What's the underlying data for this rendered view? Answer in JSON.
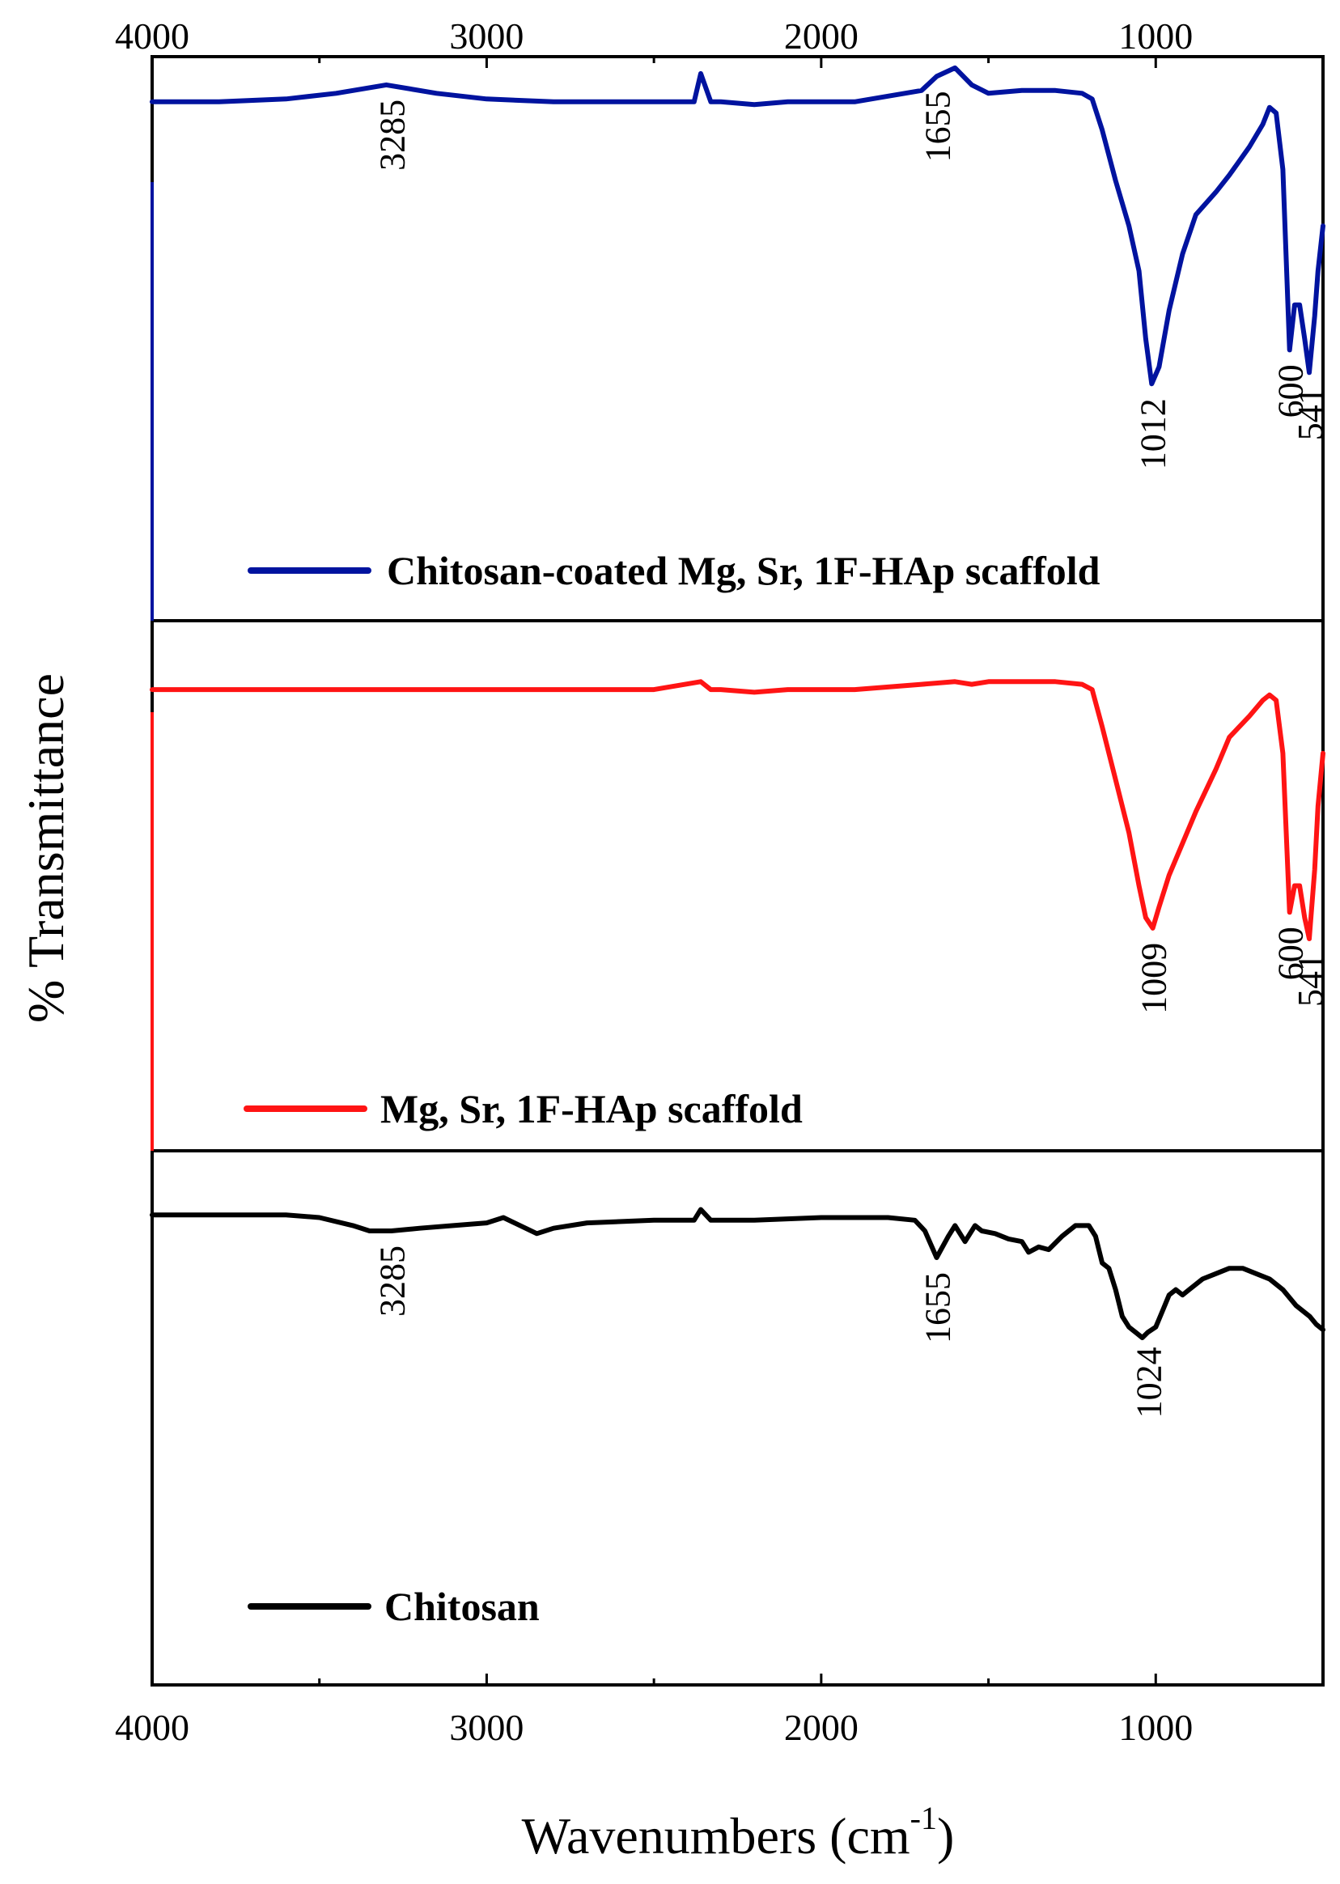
{
  "chart_data": {
    "type": "line",
    "xlabel": "Wavenumbers (cm",
    "xlabel_sup": "-1",
    "xlabel_end": ")",
    "ylabel": "% Transmittance",
    "xlim": [
      4000,
      500
    ],
    "x_ticks": [
      4000,
      3000,
      2000,
      1000
    ],
    "x_tick_labels": [
      "4000",
      "3000",
      "2000",
      "1000"
    ],
    "series": [
      {
        "name": "Chitosan-coated Mg, Sr, 1F-HAp scaffold",
        "color": "#00139f",
        "ylim": [
          0,
          100
        ],
        "x": [
          4000,
          3800,
          3600,
          3450,
          3300,
          3150,
          3000,
          2800,
          2500,
          2380,
          2360,
          2330,
          2300,
          2200,
          2100,
          2000,
          1900,
          1800,
          1700,
          1655,
          1600,
          1550,
          1500,
          1400,
          1300,
          1220,
          1190,
          1160,
          1120,
          1080,
          1050,
          1030,
          1012,
          990,
          960,
          920,
          880,
          820,
          780,
          720,
          680,
          660,
          640,
          620,
          600,
          585,
          570,
          555,
          541,
          525,
          515,
          500
        ],
        "y": [
          92,
          92,
          92.5,
          93.5,
          95,
          93.5,
          92.5,
          92,
          92,
          92,
          97,
          92,
          92,
          91.5,
          92,
          92,
          92,
          93,
          94,
          96.5,
          98,
          95,
          93.5,
          94,
          94,
          93.5,
          92.5,
          87,
          78,
          70,
          62,
          50,
          42,
          45,
          55,
          65,
          72,
          76,
          79,
          84,
          88,
          91,
          90,
          80,
          48,
          56,
          56,
          50,
          44,
          54,
          62,
          70
        ]
      },
      {
        "name": "Mg, Sr, 1F-HAp scaffold",
        "color": "#ff1414",
        "ylim": [
          0,
          100
        ],
        "x": [
          4000,
          3800,
          3600,
          3400,
          3200,
          3000,
          2800,
          2500,
          2360,
          2330,
          2300,
          2200,
          2100,
          2000,
          1900,
          1800,
          1700,
          1600,
          1550,
          1500,
          1400,
          1300,
          1220,
          1190,
          1160,
          1120,
          1080,
          1050,
          1030,
          1009,
          990,
          960,
          920,
          880,
          820,
          780,
          720,
          680,
          660,
          640,
          620,
          600,
          585,
          570,
          555,
          541,
          525,
          515,
          500
        ],
        "y": [
          87,
          87,
          87,
          87,
          87,
          87,
          87,
          87,
          88.5,
          87,
          87,
          86.5,
          87,
          87,
          87,
          87.5,
          88,
          88.5,
          88,
          88.5,
          88.5,
          88.5,
          88,
          87,
          80,
          70,
          60,
          50,
          44,
          42,
          46,
          52,
          58,
          64,
          72,
          78,
          82,
          85,
          86,
          85,
          75,
          45,
          50,
          50,
          44,
          40,
          53,
          65,
          75
        ]
      },
      {
        "name": "Chitosan",
        "color": "#000000",
        "ylim": [
          0,
          100
        ],
        "x": [
          4000,
          3800,
          3600,
          3500,
          3400,
          3350,
          3285,
          3200,
          3100,
          3000,
          2950,
          2900,
          2850,
          2800,
          2700,
          2500,
          2380,
          2360,
          2330,
          2300,
          2200,
          2000,
          1800,
          1720,
          1690,
          1655,
          1620,
          1600,
          1570,
          1540,
          1520,
          1480,
          1440,
          1400,
          1380,
          1350,
          1320,
          1280,
          1240,
          1200,
          1180,
          1160,
          1140,
          1120,
          1100,
          1080,
          1060,
          1040,
          1024,
          1000,
          980,
          960,
          940,
          920,
          900,
          860,
          820,
          780,
          740,
          700,
          660,
          620,
          580,
          540,
          520,
          500
        ],
        "y": [
          88,
          88,
          88,
          87.5,
          86,
          85,
          85,
          85.5,
          86,
          86.5,
          87.5,
          86,
          84.5,
          85.5,
          86.5,
          87,
          87,
          89,
          87,
          87,
          87,
          87.5,
          87.5,
          87,
          85,
          80,
          84,
          86,
          83,
          86,
          85,
          84.5,
          83.5,
          83,
          81,
          82,
          81.5,
          84,
          86,
          86,
          84,
          79,
          78,
          74,
          69,
          67,
          66,
          65,
          66,
          67,
          70,
          73,
          74,
          73,
          74,
          76,
          77,
          78,
          78,
          77,
          76,
          74,
          71,
          69,
          67.5,
          66.5
        ]
      }
    ],
    "annotations": [
      {
        "series": 0,
        "label": "3285",
        "x": 3285
      },
      {
        "series": 0,
        "label": "1655",
        "x": 1655
      },
      {
        "series": 0,
        "label": "1012",
        "x": 1012
      },
      {
        "series": 0,
        "label": "600",
        "x": 600
      },
      {
        "series": 0,
        "label": "541",
        "x": 541
      },
      {
        "series": 1,
        "label": "1009",
        "x": 1009
      },
      {
        "series": 1,
        "label": "600",
        "x": 600
      },
      {
        "series": 1,
        "label": "541",
        "x": 541
      },
      {
        "series": 2,
        "label": "3285",
        "x": 3285
      },
      {
        "series": 2,
        "label": "1655",
        "x": 1655
      },
      {
        "series": 2,
        "label": "1024",
        "x": 1024
      }
    ],
    "legend": [
      "Chitosan-coated Mg, Sr, 1F-HAp scaffold",
      "Mg, Sr, 1F-HAp scaffold",
      "Chitosan"
    ],
    "grid": false
  }
}
